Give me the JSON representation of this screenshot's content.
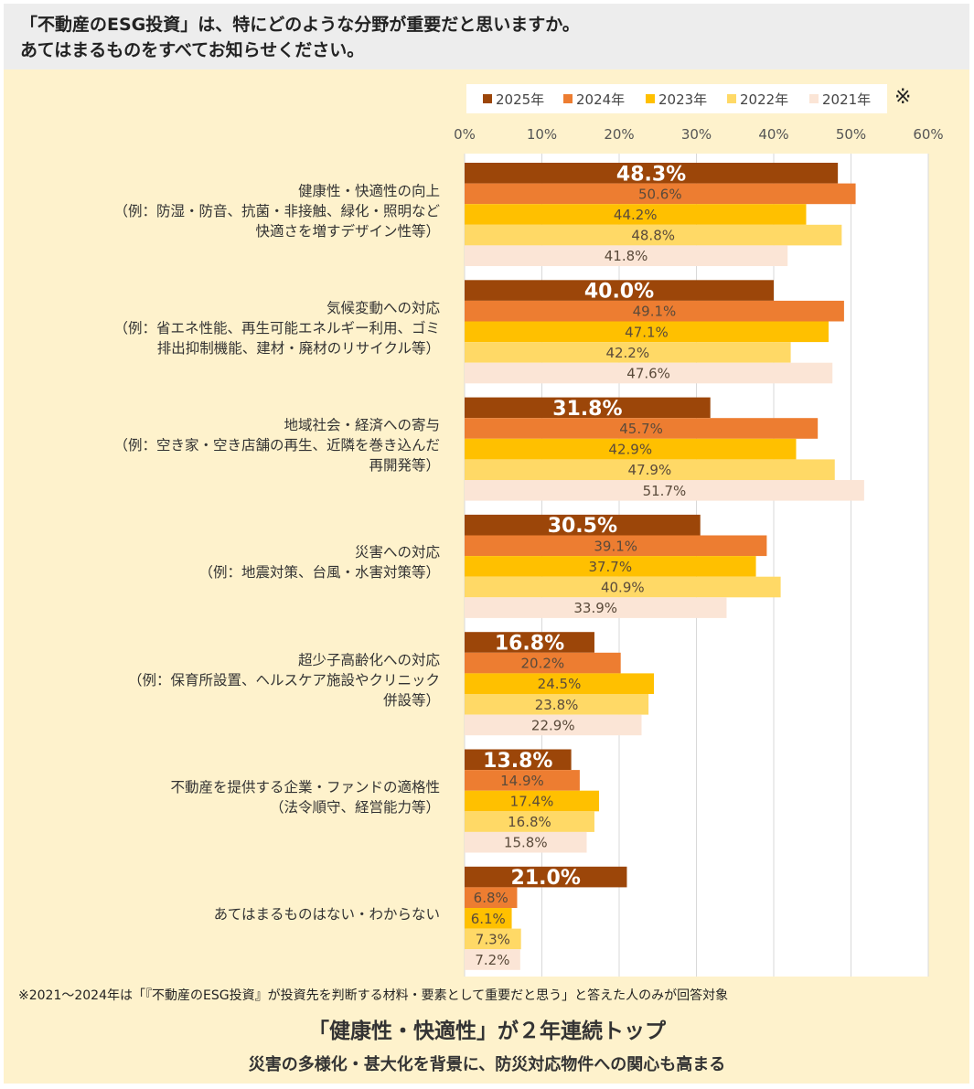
{
  "question": {
    "line1": "「不動産のESG投資」は、特にどのような分野が重要だと思いますか。",
    "line2": "あてはまるものをすべてお知らせください。"
  },
  "legend_note_mark": "※",
  "footnote": "※2021～2024年は「『不動産のESG投資』が投資先を判断する材料・要素として重要だと思う」と答えた人のみが回答対象",
  "headline": "「健康性・快適性」が２年連続トップ",
  "subheadline": "災害の多様化・甚大化を背景に、防災対応物件への関心も高まる",
  "chart_data": {
    "type": "bar",
    "orientation": "horizontal",
    "xlim": [
      0,
      60
    ],
    "x_ticks": [
      "0%",
      "10%",
      "20%",
      "30%",
      "40%",
      "50%",
      "60%"
    ],
    "grid": true,
    "legend_position": "top",
    "categories": [
      "健康性・快適性の向上\n（例：防湿・防音、抗菌・非接触、緑化・照明など\n快適さを増すデザイン性等）",
      "気候変動への対応\n（例：省エネ性能、再生可能エネルギー利用、ゴミ\n排出抑制機能、建材・廃材のリサイクル等）",
      "地域社会・経済への寄与\n（例：空き家・空き店舗の再生、近隣を巻き込んだ\n再開発等）",
      "災害への対応\n（例：地震対策、台風・水害対策等）",
      "超少子高齢化への対応\n（例：保育所設置、ヘルスケア施設やクリニック\n併設等）",
      "不動産を提供する企業・ファンドの適格性\n（法令順守、経営能力等）",
      "あてはまるものはない・わからない"
    ],
    "series": [
      {
        "name": "2025年",
        "color": "#9c4609",
        "values": [
          48.3,
          40.0,
          31.8,
          30.5,
          16.8,
          13.8,
          21.0
        ],
        "labels": [
          "48.3%",
          "40.0%",
          "31.8%",
          "30.5%",
          "16.8%",
          "13.8%",
          "21.0%"
        ]
      },
      {
        "name": "2024年",
        "color": "#ed7d31",
        "values": [
          50.6,
          49.1,
          45.7,
          39.1,
          20.2,
          14.9,
          6.8
        ],
        "labels": [
          "50.6%",
          "49.1%",
          "45.7%",
          "39.1%",
          "20.2%",
          "14.9%",
          "6.8%"
        ]
      },
      {
        "name": "2023年",
        "color": "#ffc000",
        "values": [
          44.2,
          47.1,
          42.9,
          37.7,
          24.5,
          17.4,
          6.1
        ],
        "labels": [
          "44.2%",
          "47.1%",
          "42.9%",
          "37.7%",
          "24.5%",
          "17.4%",
          "6.1%"
        ]
      },
      {
        "name": "2022年",
        "color": "#ffd966",
        "values": [
          48.8,
          42.2,
          47.9,
          40.9,
          23.8,
          16.8,
          7.3
        ],
        "labels": [
          "48.8%",
          "42.2%",
          "47.9%",
          "40.9%",
          "23.8%",
          "16.8%",
          "7.3%"
        ]
      },
      {
        "name": "2021年",
        "color": "#fbe5d6",
        "values": [
          41.8,
          47.6,
          51.7,
          33.9,
          22.9,
          15.8,
          7.2
        ],
        "labels": [
          "41.8%",
          "47.6%",
          "51.7%",
          "33.9%",
          "22.9%",
          "15.8%",
          "7.2%"
        ]
      }
    ]
  }
}
